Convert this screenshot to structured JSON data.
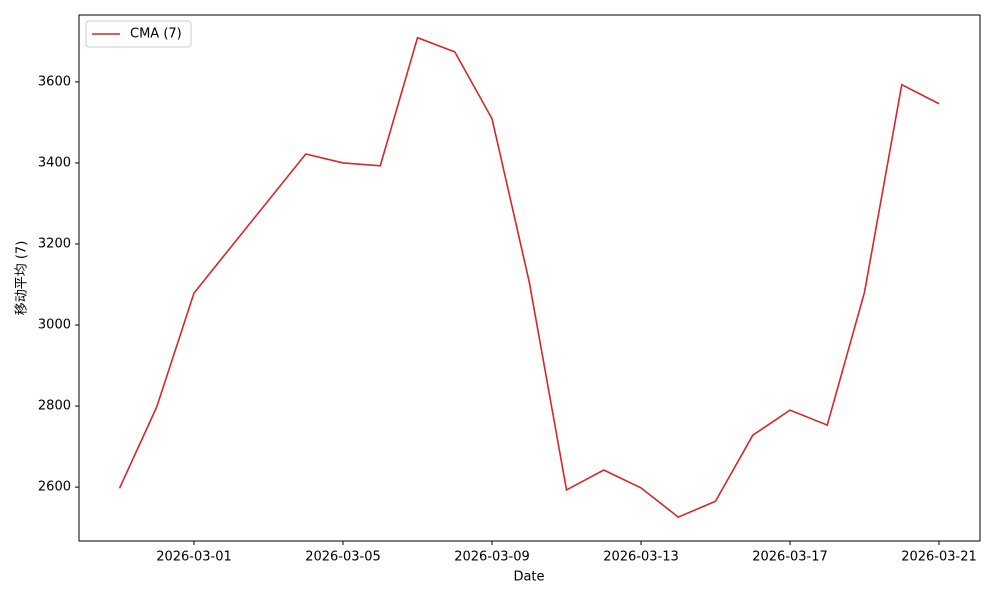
{
  "chart_data": {
    "type": "line",
    "x_label": "Date",
    "y_label": "移动平均 (7)",
    "x": [
      "2026-02-27",
      "2026-02-28",
      "2026-03-01",
      "2026-03-04",
      "2026-03-05",
      "2026-03-06",
      "2026-03-07",
      "2026-03-08",
      "2026-03-09",
      "2026-03-10",
      "2026-03-11",
      "2026-03-12",
      "2026-03-13",
      "2026-03-14",
      "2026-03-15",
      "2026-03-16",
      "2026-03-17",
      "2026-03-18",
      "2026-03-19",
      "2026-03-20",
      "2026-03-21"
    ],
    "series": [
      {
        "name": "CMA (7)",
        "color": "#d62728",
        "values": [
          2597,
          2798,
          3079,
          3422,
          3400,
          3393,
          3709,
          3674,
          3509,
          3106,
          2593,
          2642,
          2598,
          2526,
          2565,
          2728,
          2790,
          2753,
          3081,
          3593,
          3546
        ]
      }
    ],
    "xlim": [
      "2026-02-25T21:54:00Z",
      "2026-03-22T02:24:00Z"
    ],
    "xticks": [
      "2026-03-01",
      "2026-03-05",
      "2026-03-09",
      "2026-03-13",
      "2026-03-17",
      "2026-03-21"
    ],
    "ylim": [
      2467,
      3765
    ],
    "yticks": [
      2600,
      2800,
      3000,
      3200,
      3400,
      3600
    ],
    "legend": "upper-left"
  }
}
